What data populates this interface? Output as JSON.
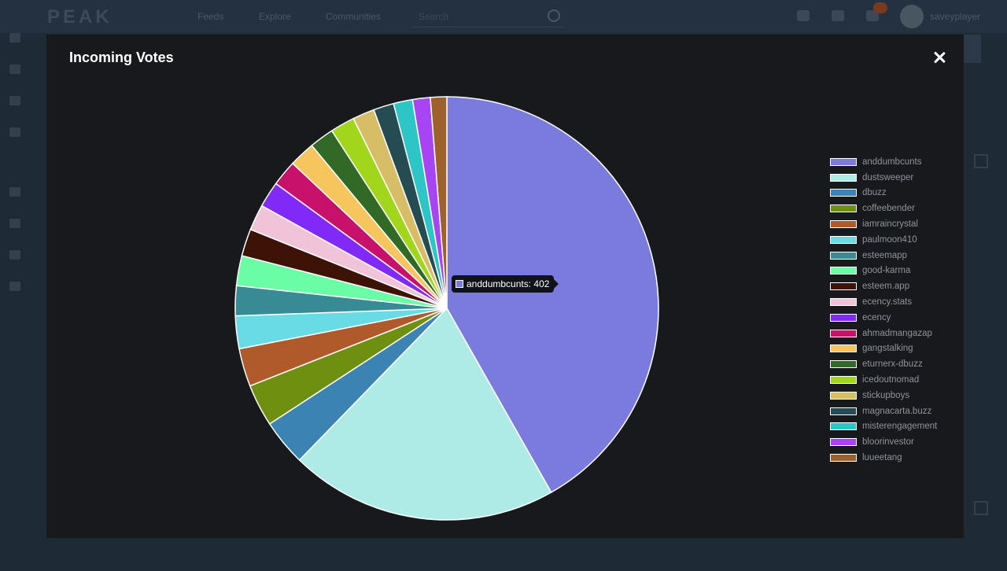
{
  "header": {
    "logo": "PEAK",
    "nav": [
      "Feeds",
      "Explore",
      "Communities"
    ],
    "search_placeholder": "Search",
    "username": "saveyplayer"
  },
  "modal": {
    "title": "Incoming Votes"
  },
  "tooltip": {
    "label": "anddumbcunts: 402"
  },
  "chart_data": {
    "type": "pie",
    "title": "",
    "legend_position": "right",
    "categories": [
      "anddumbcunts",
      "dustsweeper",
      "dbuzz",
      "coffeebender",
      "iamraincrystal",
      "paulmoon410",
      "esteemapp",
      "good-karma",
      "esteem.app",
      "ecency.stats",
      "ecency",
      "ahmadmangazap",
      "gangstalking",
      "eturnerx-dbuzz",
      "icedoutnomad",
      "stickupboys",
      "magnacarta.buzz",
      "misterengagement",
      "bloorinvestor",
      "luueetang"
    ],
    "values": [
      402,
      197,
      34,
      31,
      28,
      24,
      22,
      22,
      20,
      19,
      19,
      19,
      19,
      18,
      18,
      16,
      15,
      14,
      13,
      12
    ],
    "colors": [
      "#7b7bdd",
      "#aeeae6",
      "#3b83b3",
      "#6f8f10",
      "#b05a2c",
      "#68dbe5",
      "#388a94",
      "#6afda5",
      "#3d1308",
      "#f1c3d9",
      "#8129f7",
      "#c8116a",
      "#f7c55e",
      "#316927",
      "#a2d61c",
      "#d6bd66",
      "#244c52",
      "#2cc6c7",
      "#a745f5",
      "#9e612b"
    ]
  }
}
